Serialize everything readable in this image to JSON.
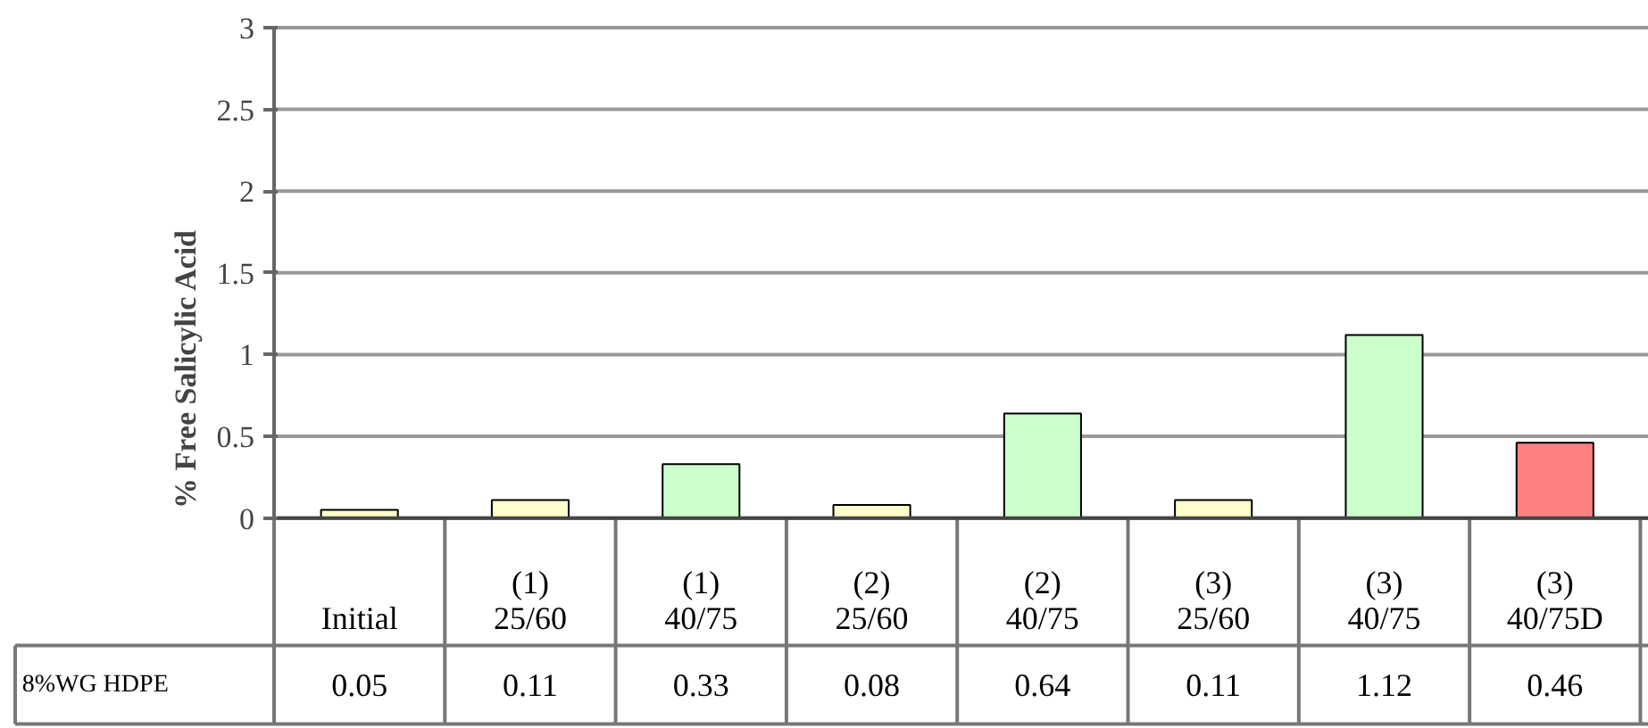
{
  "chart_data": {
    "type": "bar",
    "ylabel": "% Free Salicylic Acid",
    "categories": [
      "Initial",
      "(1) 25/60",
      "(1) 40/75",
      "(2) 25/60",
      "(2) 40/75",
      "(3) 25/60",
      "(3) 40/75",
      "(3) 40/75D"
    ],
    "series": [
      {
        "name": "8%WG HDPE",
        "values": [
          0.05,
          0.11,
          0.33,
          0.08,
          0.64,
          0.11,
          1.12,
          0.46
        ],
        "colors": [
          "#ffffcc",
          "#ffffcc",
          "#ccffcc",
          "#ffffcc",
          "#ccffcc",
          "#ffffcc",
          "#ccffcc",
          "#ff8080"
        ]
      }
    ],
    "ylim": [
      0,
      3
    ],
    "yticks": [
      0,
      0.5,
      1,
      1.5,
      2,
      2.5,
      3
    ],
    "grid": "y",
    "data_labels": true
  }
}
